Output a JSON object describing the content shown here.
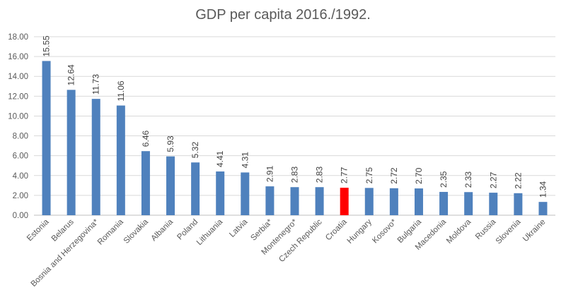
{
  "chart_data": {
    "type": "bar",
    "title": "GDP per capita 2016./1992.",
    "xlabel": "",
    "ylabel": "",
    "ylim": [
      0,
      18
    ],
    "y_ticks": [
      "0.00",
      "2.00",
      "4.00",
      "6.00",
      "8.00",
      "10.00",
      "12.00",
      "14.00",
      "16.00",
      "18.00"
    ],
    "grid": true,
    "categories": [
      "Estonia",
      "Belarus",
      "Bosnia and Herzegovina*",
      "Romania",
      "Slovakia",
      "Albania",
      "Poland",
      "Lithuania",
      "Latvia",
      "Serbia*",
      "Montenegro*",
      "Czech Republic",
      "Croatia",
      "Hungary",
      "Kosovo*",
      "Bulgaria",
      "Macedonia",
      "Moldova",
      "Russia",
      "Slovenia",
      "Ukraine"
    ],
    "values": [
      15.55,
      12.64,
      11.73,
      11.06,
      6.46,
      5.93,
      5.32,
      4.41,
      4.31,
      2.91,
      2.83,
      2.83,
      2.77,
      2.75,
      2.72,
      2.7,
      2.35,
      2.33,
      2.27,
      2.22,
      1.34
    ],
    "value_labels": [
      "15.55",
      "12.64",
      "11.73",
      "11.06",
      "6.46",
      "5.93",
      "5.32",
      "4.41",
      "4.31",
      "2.91",
      "2.83",
      "2.83",
      "2.77",
      "2.75",
      "2.72",
      "2.70",
      "2.35",
      "2.33",
      "2.27",
      "2.22",
      "1.34"
    ],
    "colors": {
      "bar": "#4f81bd",
      "highlight": "#ff0000",
      "grid": "#d9d9d9",
      "axis": "#bfbfbf"
    },
    "highlight_category": "Croatia"
  }
}
